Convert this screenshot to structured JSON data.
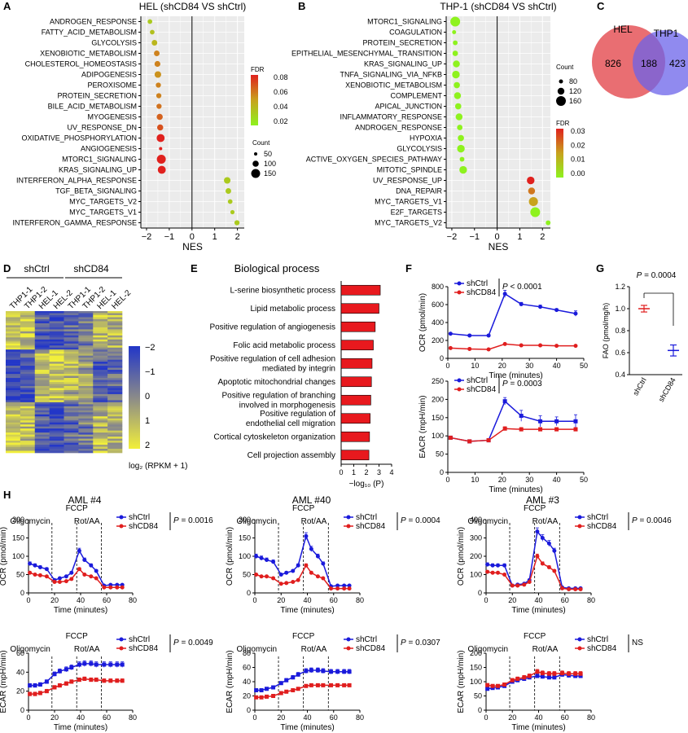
{
  "panel_letters": [
    "A",
    "B",
    "C",
    "D",
    "E",
    "F",
    "G",
    "H"
  ],
  "heatmap_label": "log₂ (RPKM + 1)",
  "chart_data": [
    {
      "id": "A",
      "type": "scatter",
      "title": "HEL (shCD84 VS shCtrl)",
      "xlabel": "NES",
      "xlim": [
        -2.25,
        2.3
      ],
      "xticks": [
        -2,
        -1,
        0,
        1,
        2
      ],
      "categories": [
        "ANDROGEN_RESPONSE",
        "FATTY_ACID_METABOLISM",
        "GLYCOLYSIS",
        "XENOBIOTIC_METABOLISM",
        "CHOLESTEROL_HOMEOSTASIS",
        "ADIPOGENESIS",
        "PEROXISOME",
        "PROTEIN_SECRETION",
        "BILE_ACID_METABOLISM",
        "MYOGENESIS",
        "UV_RESPONSE_DN",
        "OXIDATIVE_PHOSPHORYLATION",
        "ANGIOGENESIS",
        "MTORC1_SIGNALING",
        "KRAS_SIGNALING_UP",
        "INTERFERON_ALPHA_RESPONSE",
        "TGF_BETA_SIGNALING",
        "MYC_TARGETS_V2",
        "MYC_TARGETS_V1",
        "INTERFERON_GAMMA_RESPONSE"
      ],
      "nes": [
        -1.85,
        -1.75,
        -1.65,
        -1.55,
        -1.52,
        -1.5,
        -1.48,
        -1.46,
        -1.45,
        -1.42,
        -1.4,
        -1.38,
        -1.38,
        -1.35,
        -1.33,
        1.55,
        1.6,
        1.68,
        1.78,
        1.98
      ],
      "fdr": [
        0.02,
        0.025,
        0.03,
        0.05,
        0.05,
        0.045,
        0.05,
        0.05,
        0.055,
        0.06,
        0.065,
        0.085,
        0.085,
        0.085,
        0.09,
        0.02,
        0.02,
        0.02,
        0.02,
        0.02
      ],
      "count": [
        60,
        60,
        80,
        80,
        85,
        100,
        70,
        70,
        70,
        90,
        90,
        130,
        30,
        150,
        130,
        100,
        80,
        60,
        50,
        70
      ],
      "legend": {
        "fdr_title": "FDR",
        "fdr_ticks": [
          "0.08",
          "0.06",
          "0.04",
          "0.02"
        ],
        "count_title": "Count",
        "count_levels": [
          "50",
          "100",
          "150"
        ]
      }
    },
    {
      "id": "B",
      "type": "scatter",
      "title": "THP-1 (shCD84 VS shCtrl)",
      "xlabel": "NES",
      "xlim": [
        -2.25,
        2.35
      ],
      "xticks": [
        -2,
        -1,
        0,
        1,
        2
      ],
      "categories": [
        "MTORC1_SIGNALING",
        "COAGULATION",
        "PROTEIN_SECRETION",
        "EPITHELIAL_MESENCHYMAL_TRANSITION",
        "KRAS_SIGNALING_UP",
        "TNFA_SIGNALING_VIA_NFKB",
        "XENOBIOTIC_METABOLISM",
        "COMPLEMENT",
        "APICAL_JUNCTION",
        "INFLAMMATORY_RESPONSE",
        "ANDROGEN_RESPONSE",
        "HYPOXIA",
        "GLYCOLYSIS",
        "ACTIVE_OXYGEN_SPECIES_PATHWAY",
        "MITOTIC_SPINDLE",
        "UV_RESPONSE_UP",
        "DNA_REPAIR",
        "MYC_TARGETS_V1",
        "E2F_TARGETS",
        "MYC_TARGETS_V2"
      ],
      "nes": [
        -1.85,
        -1.9,
        -1.85,
        -1.85,
        -1.8,
        -1.82,
        -1.78,
        -1.75,
        -1.72,
        -1.68,
        -1.65,
        -1.6,
        -1.6,
        -1.55,
        -1.5,
        1.48,
        1.52,
        1.6,
        1.68,
        2.25
      ],
      "fdr": [
        0.0,
        0.0,
        0.0,
        0.0,
        0.0,
        0.0,
        0.0,
        0.0,
        0.0,
        0.0,
        0.0,
        0.0,
        0.0,
        0.0,
        0.0,
        0.03,
        0.02,
        0.015,
        0.0,
        0.0
      ],
      "count": [
        160,
        80,
        90,
        100,
        120,
        130,
        110,
        120,
        110,
        120,
        100,
        110,
        130,
        90,
        130,
        130,
        120,
        150,
        160,
        90
      ],
      "legend": {
        "count_title": "Count",
        "count_levels": [
          "80",
          "120",
          "160"
        ],
        "fdr_title": "FDR",
        "fdr_ticks": [
          "0.03",
          "0.02",
          "0.01",
          "0.00"
        ]
      }
    },
    {
      "id": "C",
      "type": "venn",
      "sets": [
        "HEL",
        "THP1"
      ],
      "only_a": 826,
      "both": 188,
      "only_b": 423
    },
    {
      "id": "D",
      "type": "heatmap",
      "groups": [
        "shCtrl",
        "shCD84"
      ],
      "columns": [
        "THP1-1",
        "THP1-2",
        "HEL-1",
        "HEL-2",
        "THP1-1",
        "THP1-2",
        "HEL-1",
        "HEL-2"
      ],
      "scale_ticks": [
        "-2",
        "-1",
        "0",
        "1",
        "2"
      ],
      "scale_label": "log2 (RPKM + 1)"
    },
    {
      "id": "E",
      "type": "bar",
      "title": "Biological process",
      "categories": [
        [
          "L-serine biosynthetic process"
        ],
        [
          "Lipid metabolic process"
        ],
        [
          "Positive regulation of angiogenesis"
        ],
        [
          "Folic acid metabolic process"
        ],
        [
          "Positive regulation of cell adhesion",
          "mediated by integrin"
        ],
        [
          "Apoptotic mitochondrial changes"
        ],
        [
          "Positive regulation of branching",
          "involved in morphogenesis"
        ],
        [
          "Positive regulation of",
          "endothelial cell migration"
        ],
        [
          "Cortical cytoskeleton organization"
        ],
        [
          "Cell projection assembly"
        ]
      ],
      "values": [
        3.1,
        3.0,
        2.7,
        2.55,
        2.45,
        2.4,
        2.35,
        2.3,
        2.25,
        2.2
      ],
      "xlim": [
        0,
        4
      ],
      "xticks": [
        "0",
        "1",
        "2",
        "3",
        "4"
      ],
      "xlabel": "−log₁₀ (P)",
      "bar_color": "#e8191e"
    },
    {
      "id": "F1",
      "type": "line",
      "x": [
        1,
        8,
        15,
        21,
        27,
        34,
        40,
        47
      ],
      "series": [
        {
          "name": "shCtrl",
          "color": "#1a1adb",
          "values": [
            275,
            255,
            255,
            720,
            605,
            575,
            540,
            500
          ],
          "err": [
            12,
            10,
            10,
            40,
            20,
            20,
            15,
            30
          ]
        },
        {
          "name": "shCD84",
          "color": "#e01e1e",
          "values": [
            115,
            105,
            100,
            160,
            145,
            145,
            140,
            140
          ],
          "err": [
            6,
            5,
            5,
            10,
            8,
            8,
            8,
            8
          ]
        }
      ],
      "pvalue": "P < 0.0001",
      "xlim": [
        0,
        50
      ],
      "ylim": [
        0,
        800
      ],
      "xticks": [
        "0",
        "10",
        "20",
        "30",
        "40",
        "50"
      ],
      "yticks": [
        "0",
        "200",
        "400",
        "600",
        "800"
      ],
      "xlabel": "Time (minutes)",
      "ylabel": "OCR (pmol/min)"
    },
    {
      "id": "F2",
      "type": "line",
      "x": [
        1,
        8,
        15,
        21,
        27,
        34,
        40,
        47
      ],
      "series": [
        {
          "name": "shCtrl",
          "color": "#1a1adb",
          "values": [
            95,
            85,
            88,
            195,
            155,
            140,
            140,
            140
          ],
          "err": [
            4,
            3,
            3,
            10,
            15,
            15,
            12,
            18
          ]
        },
        {
          "name": "shCD84",
          "color": "#e01e1e",
          "values": [
            95,
            85,
            88,
            120,
            118,
            118,
            118,
            118
          ],
          "err": [
            3,
            3,
            3,
            5,
            5,
            5,
            5,
            5
          ]
        }
      ],
      "pvalue": "P = 0.0003",
      "xlim": [
        0,
        50
      ],
      "ylim": [
        0,
        250
      ],
      "xticks": [
        "0",
        "10",
        "20",
        "30",
        "40",
        "50"
      ],
      "yticks": [
        "0",
        "50",
        "100",
        "150",
        "200",
        "250"
      ],
      "xlabel": "Time (minutes)",
      "ylabel": "EACR (mpH/min)"
    },
    {
      "id": "G",
      "type": "scatter",
      "categories": [
        "shCtrl",
        "shCD84"
      ],
      "values": [
        1.0,
        0.62
      ],
      "err": [
        0.03,
        0.05
      ],
      "colors": [
        "#e01e1e",
        "#1a1adb"
      ],
      "pvalue": "P = 0.0004",
      "ylim": [
        0.4,
        1.2
      ],
      "yticks": [
        "0.4",
        "0.6",
        "0.8",
        "1.0",
        "1.2"
      ],
      "ylabel": "FAO (pmol/mg/h)"
    },
    {
      "id": "H",
      "type": "line",
      "injections": [
        {
          "label": "Oligomycin",
          "x": 18
        },
        {
          "label": "FCCP",
          "x": 37
        },
        {
          "label": "Rot/AA",
          "x": 56
        }
      ],
      "x": [
        1,
        5,
        9,
        14,
        20,
        24,
        29,
        33,
        39,
        43,
        48,
        52,
        58,
        63,
        68,
        72
      ],
      "panels": [
        {
          "title": "AML #4",
          "ylabel": "OCR (pmol/min)",
          "ylim": [
            0,
            200
          ],
          "yticks": [
            "0",
            "50",
            "100",
            "150",
            "200"
          ],
          "pvalue": "P = 0.0016",
          "series": [
            {
              "name": "shCtrl",
              "color": "#1a1adb",
              "values": [
                80,
                75,
                70,
                65,
                35,
                40,
                45,
                55,
                115,
                90,
                75,
                60,
                20,
                22,
                22,
                22
              ]
            },
            {
              "name": "shCD84",
              "color": "#e01e1e",
              "values": [
                55,
                50,
                48,
                45,
                30,
                30,
                32,
                38,
                65,
                50,
                45,
                40,
                15,
                15,
                15,
                15
              ]
            }
          ]
        },
        {
          "title": "AML #40",
          "ylabel": "OCR (pmol/min)",
          "ylim": [
            0,
            200
          ],
          "yticks": [
            "0",
            "50",
            "100",
            "150",
            "200"
          ],
          "pvalue": "P = 0.0004",
          "series": [
            {
              "name": "shCtrl",
              "color": "#1a1adb",
              "values": [
                100,
                95,
                90,
                85,
                50,
                55,
                60,
                75,
                155,
                120,
                100,
                80,
                18,
                20,
                20,
                20
              ]
            },
            {
              "name": "shCD84",
              "color": "#e01e1e",
              "values": [
                50,
                45,
                45,
                40,
                25,
                27,
                30,
                35,
                75,
                55,
                45,
                40,
                12,
                12,
                12,
                12
              ]
            }
          ]
        },
        {
          "title": "AML #3",
          "ylabel": "OCR (pmol/min)",
          "ylim": [
            0,
            400
          ],
          "yticks": [
            "0",
            "100",
            "200",
            "300",
            "400"
          ],
          "pvalue": "P = 0.0046",
          "series": [
            {
              "name": "shCtrl",
              "color": "#1a1adb",
              "values": [
                155,
                150,
                150,
                150,
                40,
                45,
                50,
                70,
                335,
                300,
                270,
                230,
                30,
                25,
                25,
                25
              ]
            },
            {
              "name": "shCD84",
              "color": "#e01e1e",
              "values": [
                115,
                110,
                110,
                100,
                40,
                40,
                45,
                60,
                200,
                160,
                140,
                120,
                25,
                20,
                20,
                20
              ]
            }
          ]
        },
        {
          "title": "",
          "ylabel": "ECAR (mpH/min)",
          "ylim": [
            0,
            60
          ],
          "yticks": [
            "0",
            "20",
            "40",
            "60"
          ],
          "pvalue": "P = 0.0049",
          "series": [
            {
              "name": "shCtrl",
              "color": "#1a1adb",
              "values": [
                26,
                26,
                27,
                30,
                38,
                41,
                43,
                45,
                48,
                49,
                49,
                48,
                48,
                48,
                48,
                48
              ]
            },
            {
              "name": "shCD84",
              "color": "#e01e1e",
              "values": [
                17,
                17,
                18,
                20,
                24,
                26,
                28,
                30,
                32,
                33,
                32,
                32,
                31,
                31,
                31,
                31
              ]
            }
          ]
        },
        {
          "title": "",
          "ylabel": "ECAR (mpH/min)",
          "ylim": [
            0,
            80
          ],
          "yticks": [
            "0",
            "20",
            "40",
            "60",
            "80"
          ],
          "pvalue": "P = 0.0307",
          "series": [
            {
              "name": "shCtrl",
              "color": "#1a1adb",
              "values": [
                28,
                28,
                30,
                32,
                38,
                42,
                46,
                50,
                55,
                56,
                56,
                55,
                54,
                54,
                54,
                54
              ]
            },
            {
              "name": "shCD84",
              "color": "#e01e1e",
              "values": [
                18,
                18,
                19,
                20,
                24,
                26,
                28,
                30,
                34,
                35,
                35,
                35,
                35,
                35,
                35,
                35
              ]
            }
          ]
        },
        {
          "title": "",
          "ylabel": "ECAR (mpH/min)",
          "ylim": [
            0,
            200
          ],
          "yticks": [
            "0",
            "50",
            "100",
            "150",
            "200"
          ],
          "pvalue": "NS",
          "series": [
            {
              "name": "shCtrl",
              "color": "#1a1adb",
              "values": [
                75,
                78,
                80,
                85,
                100,
                105,
                110,
                115,
                120,
                118,
                115,
                115,
                125,
                122,
                120,
                120
              ]
            },
            {
              "name": "shCD84",
              "color": "#e01e1e",
              "values": [
                88,
                85,
                85,
                90,
                105,
                110,
                115,
                120,
                135,
                130,
                128,
                128,
                130,
                128,
                128,
                128
              ]
            }
          ]
        }
      ],
      "xlim": [
        0,
        80
      ],
      "xticks": [
        "0",
        "20",
        "40",
        "60",
        "80"
      ],
      "xlabel": "Time (minutes)"
    }
  ]
}
